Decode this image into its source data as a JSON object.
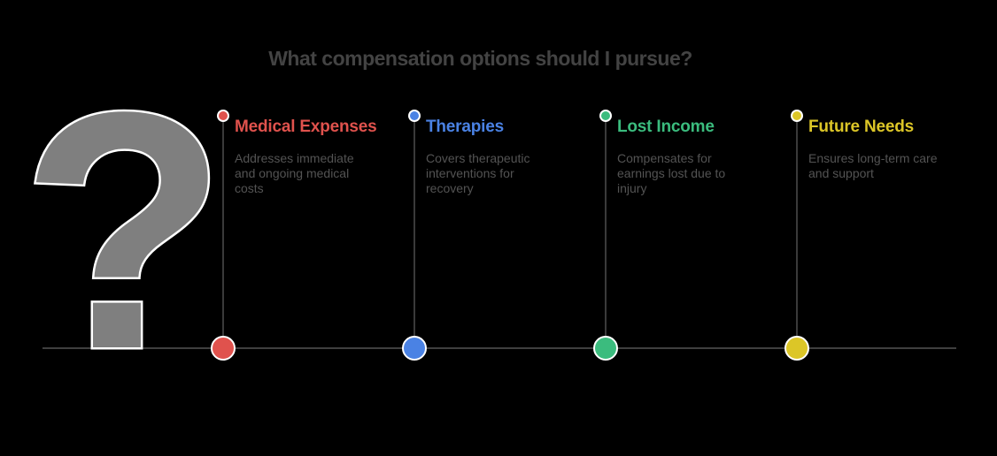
{
  "title": "What compensation options should I pursue?",
  "question_mark": {
    "glyph": "?",
    "fill_color": "#7F7F7F",
    "outline_color": "#FFFFFF"
  },
  "timeline": {
    "line_color": "#3F3F3F",
    "items": [
      {
        "title": "Medical Expenses",
        "description": "Addresses immediate\nand ongoing medical\ncosts",
        "color": "#E0524D"
      },
      {
        "title": "Therapies",
        "description": "Covers therapeutic\ninterventions for\nrecovery",
        "color": "#4A82E4"
      },
      {
        "title": "Lost Income",
        "description": "Compensates for\nearnings lost due to\ninjury",
        "color": "#3BBC7E"
      },
      {
        "title": "Future Needs",
        "description": "Ensures long-term care\nand support",
        "color": "#DCC627"
      }
    ]
  },
  "colors": {
    "background": "#000000",
    "title_text": "#434343",
    "description_text": "#535353"
  }
}
